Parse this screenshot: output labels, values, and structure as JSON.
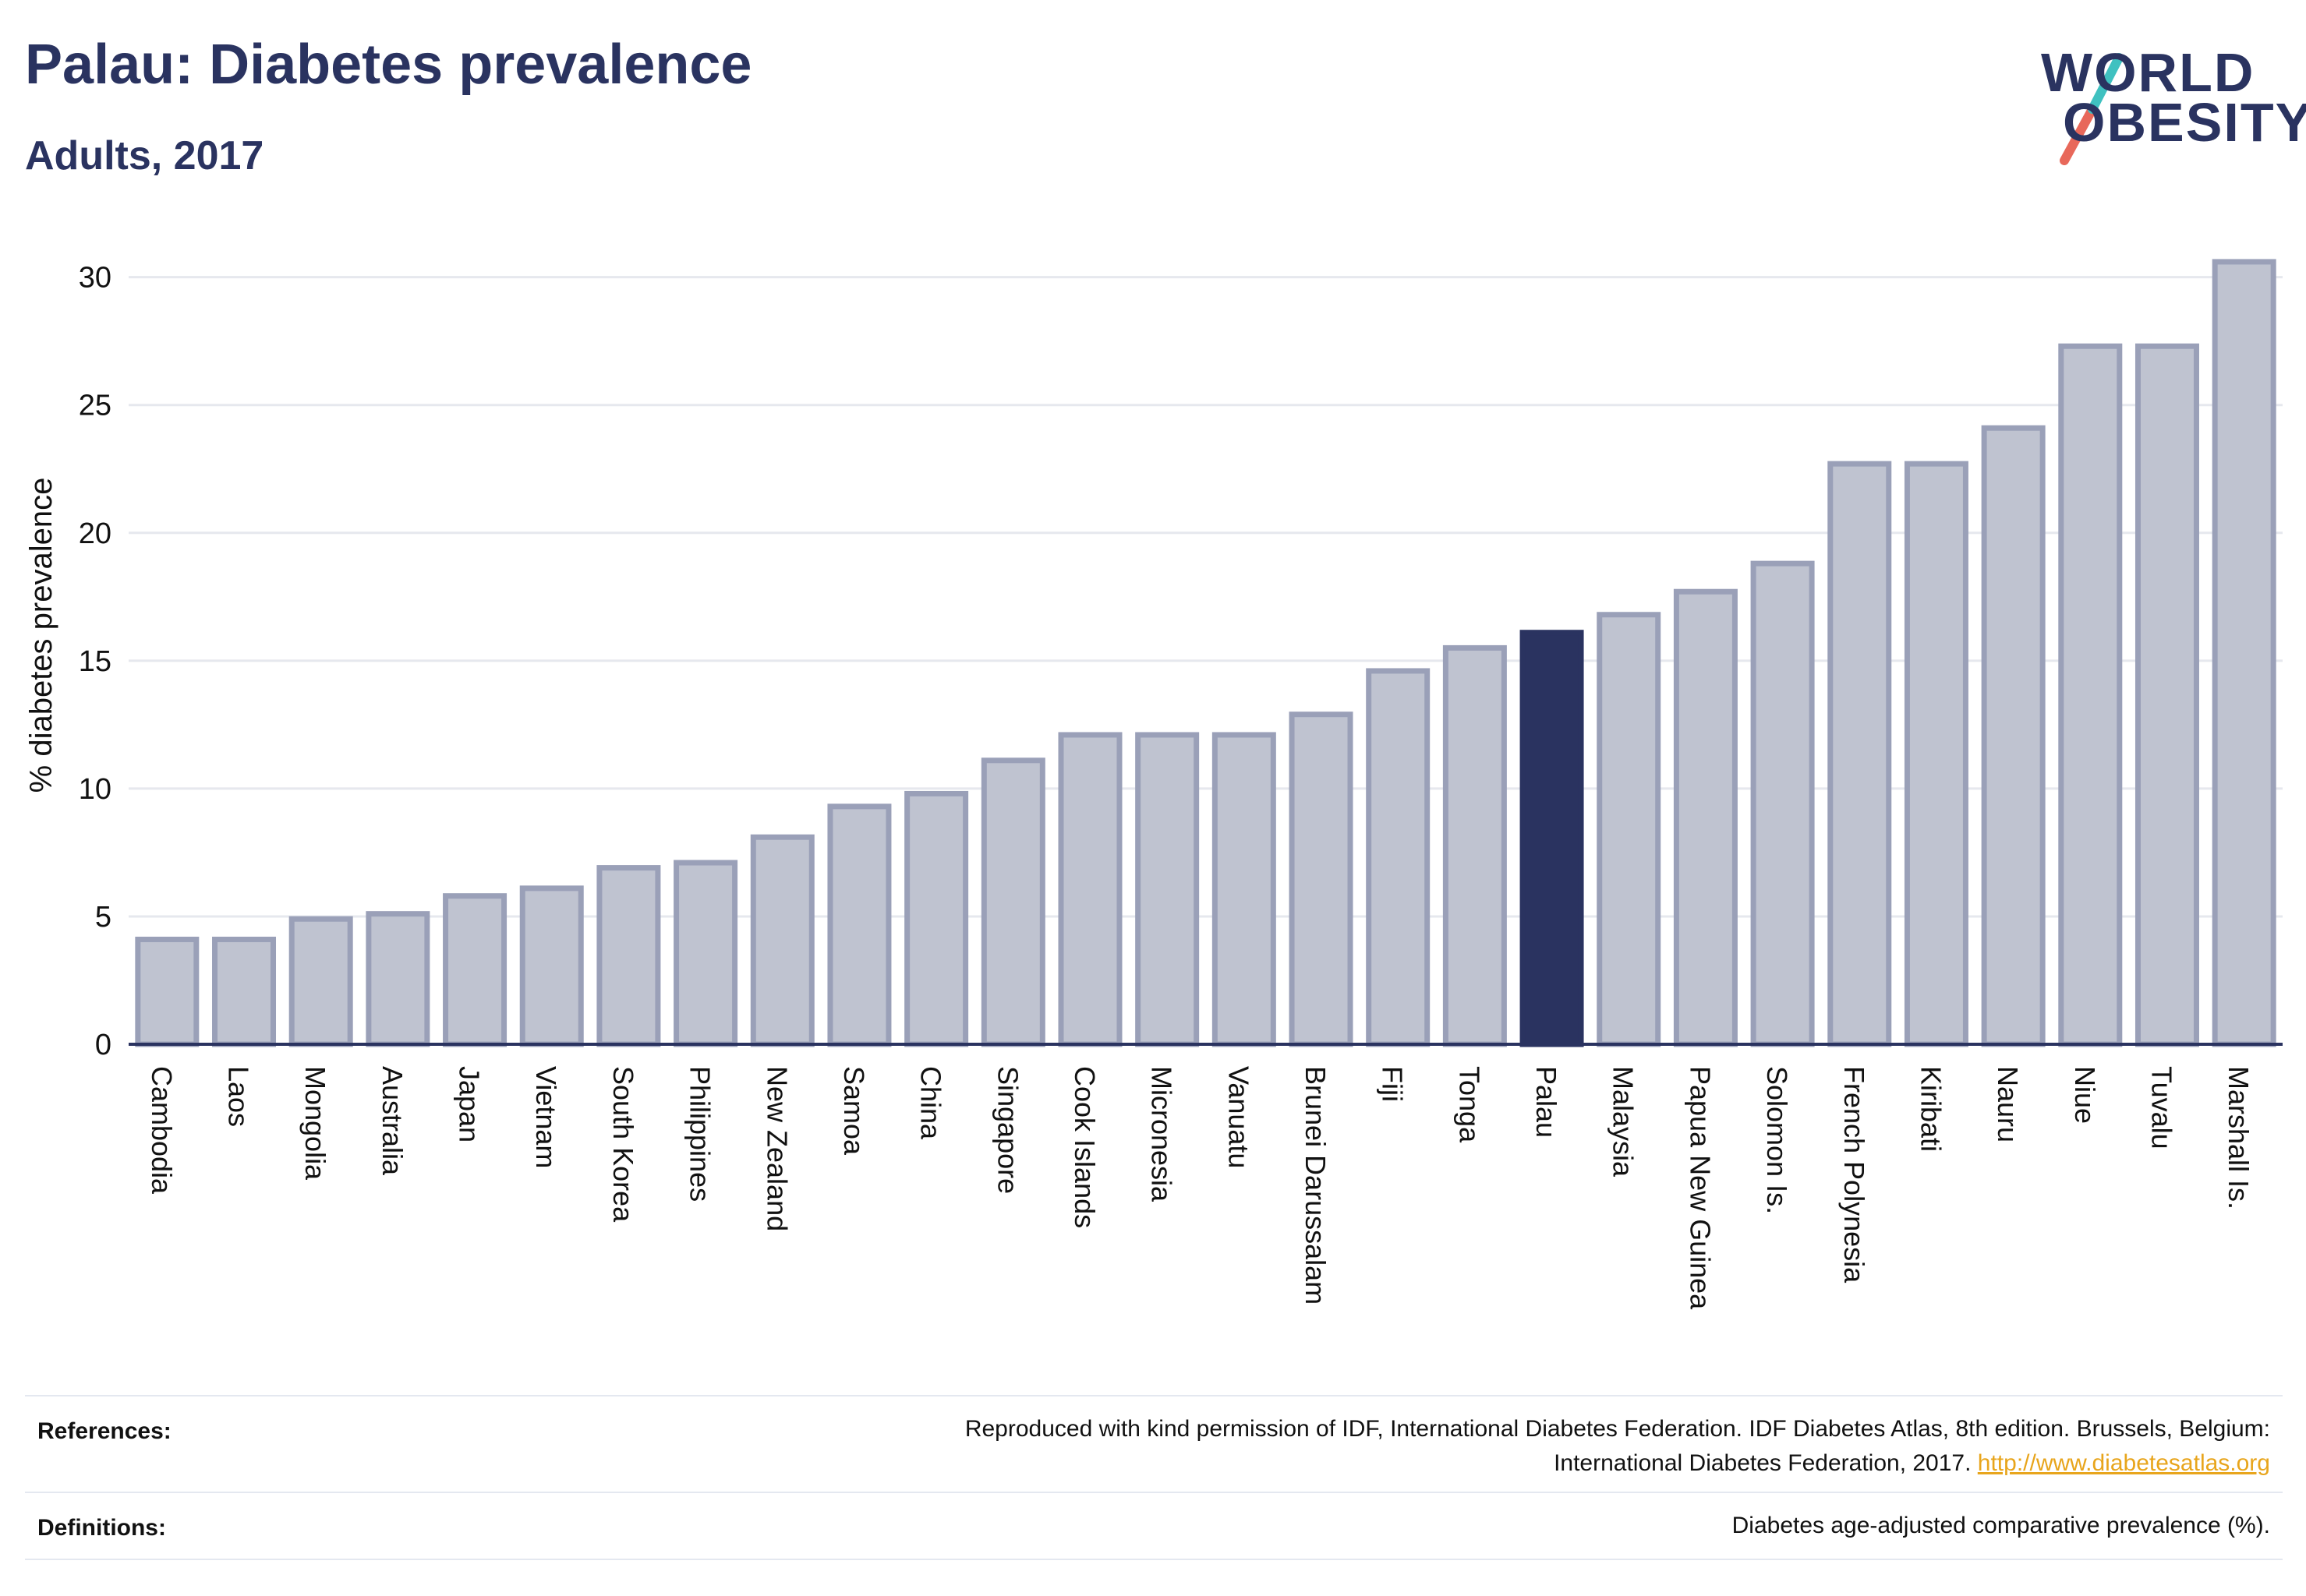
{
  "header": {
    "title": "Palau: Diabetes prevalence",
    "subtitle": "Adults, 2017"
  },
  "logo": {
    "line1": "WORLD",
    "line2": "OBESITY",
    "slash_colors": [
      "#3fc1c0",
      "#e8685a"
    ]
  },
  "colors": {
    "bar": "#bfc3d0",
    "bar_stroke": "#9aa0b8",
    "highlight": "#2a3360",
    "grid": "#e6e8ee",
    "axis": "#2a3360"
  },
  "chart_data": {
    "type": "bar",
    "ylabel": "% diabetes prevalence",
    "ylim": [
      0,
      32
    ],
    "yticks": [
      0,
      5,
      10,
      15,
      20,
      25,
      30
    ],
    "grid": true,
    "highlight_category": "Palau",
    "categories": [
      "Cambodia",
      "Laos",
      "Mongolia",
      "Australia",
      "Japan",
      "Vietnam",
      "South Korea",
      "Philippines",
      "New Zealand",
      "Samoa",
      "China",
      "Singapore",
      "Cook Islands",
      "Micronesia",
      "Vanuatu",
      "Brunei Darussalam",
      "Fiji",
      "Tonga",
      "Palau",
      "Malaysia",
      "Papua New Guinea",
      "Solomon Is.",
      "French Polynesia",
      "Kiribati",
      "Nauru",
      "Niue",
      "Tuvalu",
      "Marshall Is."
    ],
    "values": [
      4.1,
      4.1,
      4.9,
      5.1,
      5.8,
      6.1,
      6.9,
      7.1,
      8.1,
      9.3,
      9.8,
      11.1,
      12.1,
      12.1,
      12.1,
      12.9,
      14.6,
      15.5,
      16.1,
      16.8,
      17.7,
      18.8,
      22.7,
      22.7,
      24.1,
      27.3,
      27.3,
      30.6
    ]
  },
  "footer": {
    "references_label": "References:",
    "references_text": "Reproduced with kind permission of IDF, International Diabetes Federation. IDF Diabetes Atlas, 8th edition. Brussels, Belgium:",
    "references_text_line2": "International Diabetes Federation, 2017.",
    "references_link": "http://www.diabetesatlas.org",
    "definitions_label": "Definitions:",
    "definitions_text": "Diabetes age-adjusted comparative prevalence (%)."
  }
}
